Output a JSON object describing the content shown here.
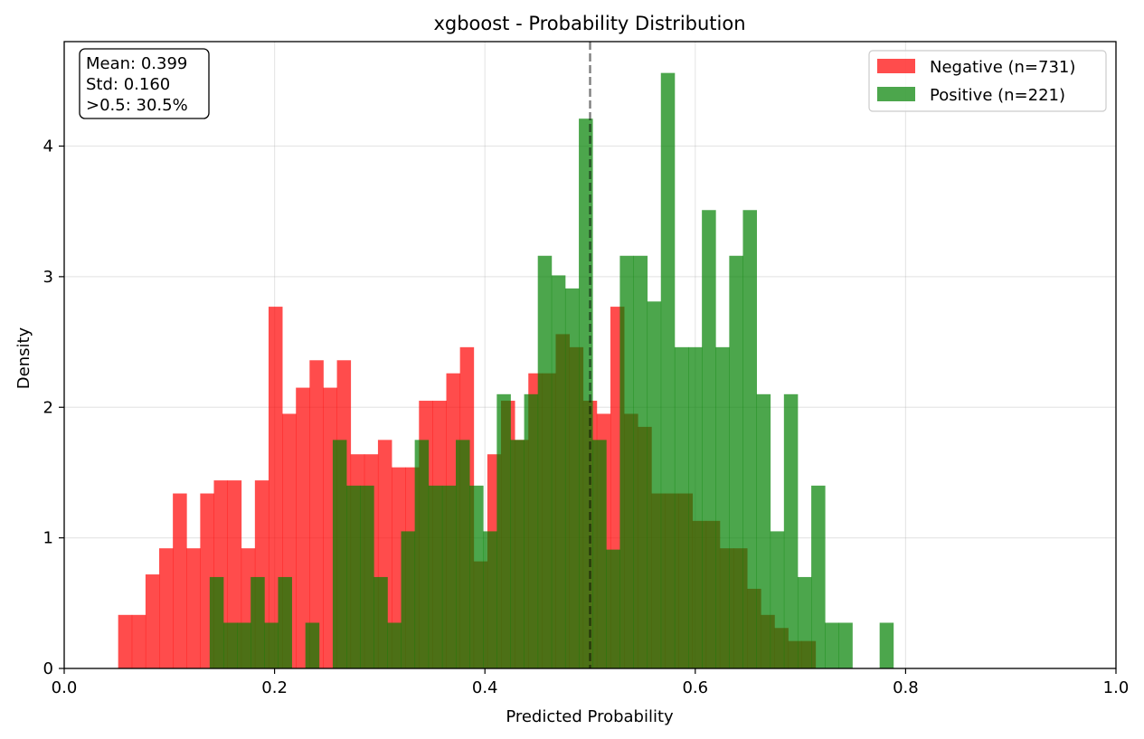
{
  "chart_data": {
    "type": "histogram",
    "title": "xgboost - Probability Distribution",
    "xlabel": "Predicted Probability",
    "ylabel": "Density",
    "xlim": [
      0.0,
      1.0
    ],
    "ylim": [
      0,
      4.8
    ],
    "xticks": [
      "0.0",
      "0.2",
      "0.4",
      "0.6",
      "0.8",
      "1.0"
    ],
    "yticks": [
      "0",
      "1",
      "2",
      "3",
      "4"
    ],
    "grid": true,
    "legend_position": "top-right",
    "bin_edges": [
      0.0513,
      0.0643,
      0.0773,
      0.0903,
      0.1033,
      0.1163,
      0.1293,
      0.1423,
      0.1553,
      0.1683,
      0.1813,
      0.1943,
      0.2073,
      0.2203,
      0.2333,
      0.2463,
      0.2593,
      0.2723,
      0.2853,
      0.2983,
      0.3113,
      0.3243,
      0.3373,
      0.3503,
      0.3633,
      0.3763,
      0.3893,
      0.4023,
      0.4153,
      0.4283,
      0.4413,
      0.4543,
      0.4673,
      0.4803,
      0.4933,
      0.5063,
      0.5193,
      0.5323,
      0.5453,
      0.5583,
      0.5713,
      0.5843,
      0.5973,
      0.6103,
      0.6233,
      0.6363,
      0.6493,
      0.6623,
      0.6753,
      0.6883,
      0.7013,
      0.7143
    ],
    "positive_bin_edges": [
      0.1383,
      0.1513,
      0.1643,
      0.1773,
      0.1903,
      0.2033,
      0.2163,
      0.2293,
      0.2423,
      0.2553,
      0.2683,
      0.2813,
      0.2943,
      0.3073,
      0.3203,
      0.3333,
      0.3463,
      0.3593,
      0.3723,
      0.3853,
      0.3983,
      0.4113,
      0.4243,
      0.4373,
      0.4503,
      0.4633,
      0.4763,
      0.4893,
      0.5023,
      0.5153,
      0.5283,
      0.5413,
      0.5543,
      0.5673,
      0.5803,
      0.5933,
      0.6063,
      0.6193,
      0.6323,
      0.6453,
      0.6583,
      0.6713,
      0.6843,
      0.6973,
      0.7103,
      0.7233,
      0.7363,
      0.7493,
      0.7623,
      0.7753,
      0.7883
    ],
    "series": [
      {
        "name": "Negative (n=731)",
        "color": "#ff0000",
        "alpha": 0.7,
        "values": [
          0.41,
          0.41,
          0.72,
          0.92,
          1.34,
          0.92,
          1.34,
          1.44,
          1.44,
          0.92,
          1.44,
          2.77,
          1.95,
          2.15,
          2.36,
          2.15,
          2.36,
          1.64,
          1.64,
          1.75,
          1.54,
          1.54,
          2.05,
          2.05,
          2.26,
          2.46,
          0.82,
          1.64,
          2.05,
          1.75,
          2.26,
          2.26,
          2.56,
          2.46,
          2.05,
          1.95,
          2.77,
          1.95,
          1.85,
          1.34,
          1.34,
          1.34,
          1.13,
          1.13,
          0.92,
          0.92,
          0.61,
          0.41,
          0.31,
          0.21,
          0.21
        ]
      },
      {
        "name": "Positive (n=221)",
        "color": "#008000",
        "alpha": 0.7,
        "values": [
          0.7,
          0.35,
          0.35,
          0.7,
          0.35,
          0.7,
          0.0,
          0.35,
          0.0,
          1.75,
          1.4,
          1.4,
          0.7,
          0.35,
          1.05,
          1.75,
          1.4,
          1.4,
          1.75,
          1.4,
          1.05,
          2.1,
          1.75,
          2.1,
          3.16,
          3.01,
          2.91,
          4.21,
          1.75,
          0.91,
          3.16,
          3.16,
          2.81,
          4.56,
          2.46,
          2.46,
          3.51,
          2.46,
          3.16,
          3.51,
          2.1,
          1.05,
          2.1,
          0.7,
          1.4,
          0.35,
          0.35,
          0.0,
          0.0,
          0.35
        ]
      }
    ],
    "threshold_line": {
      "x": 0.5,
      "style": "dashed",
      "color": "#000000"
    },
    "annotation": {
      "lines": [
        "Mean: 0.399",
        "Std: 0.160",
        ">0.5: 30.5%"
      ]
    }
  }
}
